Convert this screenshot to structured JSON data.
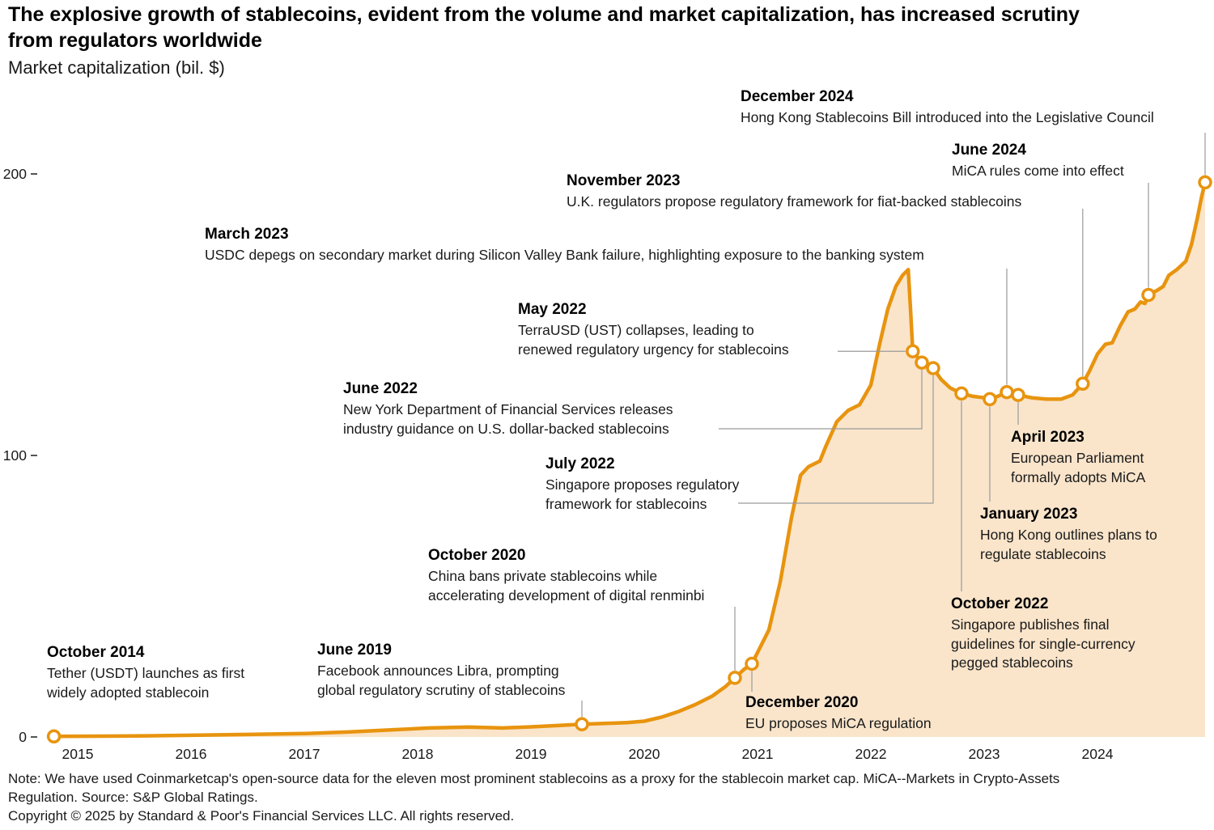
{
  "title": "The explosive growth of stablecoins, evident from the volume and market capitalization, has increased scrutiny\nfrom regulators worldwide",
  "subtitle": "Market capitalization (bil. $)",
  "footnote": "Note: We have used Coinmarketcap's open-source data for the eleven most prominent stablecoins as a proxy for the stablecoin market cap. MiCA--Markets in Crypto-Assets\nRegulation. Source: S&P Global Ratings.",
  "copyright": "Copyright © 2025 by Standard & Poor's Financial Services LLC. All rights reserved.",
  "colors": {
    "line": "#E8940F",
    "fill": "#FAE5CB",
    "marker_fill": "#FFFFFF",
    "leader": "#9A9A9A",
    "text": "#1A1A1A"
  },
  "chart_data": {
    "type": "area",
    "title": "Market capitalization (bil. $)",
    "ylabel": "Market capitalization (bil. $)",
    "xlabel": "",
    "x_range": [
      2014.75,
      2025.0
    ],
    "ylim": [
      0,
      200
    ],
    "grid": false,
    "y_ticks": [
      0,
      100,
      200
    ],
    "x_ticks": [
      2015,
      2016,
      2017,
      2018,
      2019,
      2020,
      2021,
      2022,
      2023,
      2024
    ],
    "series": [
      {
        "name": "Stablecoin market capitalization (bil. $)",
        "points": [
          [
            2014.79,
            0.2
          ],
          [
            2015.2,
            0.3
          ],
          [
            2015.6,
            0.4
          ],
          [
            2016.0,
            0.6
          ],
          [
            2016.5,
            0.9
          ],
          [
            2017.0,
            1.2
          ],
          [
            2017.4,
            1.8
          ],
          [
            2017.8,
            2.6
          ],
          [
            2018.1,
            3.2
          ],
          [
            2018.45,
            3.5
          ],
          [
            2018.75,
            3.2
          ],
          [
            2019.0,
            3.6
          ],
          [
            2019.25,
            4.1
          ],
          [
            2019.45,
            4.5
          ],
          [
            2019.65,
            4.8
          ],
          [
            2019.85,
            5.1
          ],
          [
            2020.0,
            5.6
          ],
          [
            2020.15,
            7
          ],
          [
            2020.3,
            9
          ],
          [
            2020.45,
            11.5
          ],
          [
            2020.6,
            14.5
          ],
          [
            2020.72,
            18
          ],
          [
            2020.8,
            21
          ],
          [
            2020.88,
            24
          ],
          [
            2020.95,
            26
          ],
          [
            2021.0,
            30
          ],
          [
            2021.1,
            38
          ],
          [
            2021.2,
            55
          ],
          [
            2021.3,
            78
          ],
          [
            2021.38,
            93
          ],
          [
            2021.45,
            96
          ],
          [
            2021.55,
            98
          ],
          [
            2021.6,
            103
          ],
          [
            2021.7,
            112
          ],
          [
            2021.8,
            116
          ],
          [
            2021.9,
            118
          ],
          [
            2022.0,
            125
          ],
          [
            2022.08,
            140
          ],
          [
            2022.15,
            152
          ],
          [
            2022.22,
            160
          ],
          [
            2022.28,
            164
          ],
          [
            2022.33,
            166
          ],
          [
            2022.35,
            152
          ],
          [
            2022.37,
            137
          ],
          [
            2022.42,
            134.5
          ],
          [
            2022.45,
            133
          ],
          [
            2022.5,
            131.5
          ],
          [
            2022.55,
            131
          ],
          [
            2022.62,
            127
          ],
          [
            2022.7,
            124
          ],
          [
            2022.8,
            122
          ],
          [
            2022.9,
            121
          ],
          [
            2023.0,
            120.5
          ],
          [
            2023.05,
            120
          ],
          [
            2023.12,
            121
          ],
          [
            2023.2,
            122.5
          ],
          [
            2023.25,
            122
          ],
          [
            2023.3,
            121.5
          ],
          [
            2023.42,
            120.5
          ],
          [
            2023.55,
            120
          ],
          [
            2023.68,
            120
          ],
          [
            2023.78,
            121.5
          ],
          [
            2023.87,
            125.5
          ],
          [
            2023.93,
            130
          ],
          [
            2024.0,
            136
          ],
          [
            2024.07,
            139.5
          ],
          [
            2024.13,
            140
          ],
          [
            2024.2,
            146
          ],
          [
            2024.27,
            151
          ],
          [
            2024.33,
            152
          ],
          [
            2024.38,
            154.5
          ],
          [
            2024.42,
            154
          ],
          [
            2024.45,
            157
          ],
          [
            2024.52,
            158.5
          ],
          [
            2024.58,
            160
          ],
          [
            2024.63,
            164
          ],
          [
            2024.7,
            166
          ],
          [
            2024.78,
            169
          ],
          [
            2024.83,
            175
          ],
          [
            2024.88,
            184
          ],
          [
            2024.92,
            192
          ],
          [
            2024.95,
            197
          ]
        ]
      }
    ],
    "events": [
      {
        "id": "oct-2014",
        "title": "October 2014",
        "text": "Tether (USDT) launches as first\nwidely adopted stablecoin",
        "year": 2014.79,
        "value": 0.2
      },
      {
        "id": "jun-2019",
        "title": "June 2019",
        "text": "Facebook announces Libra, prompting\nglobal regulatory scrutiny of stablecoins",
        "year": 2019.45,
        "value": 4.5
      },
      {
        "id": "oct-2020",
        "title": "October 2020",
        "text": "China bans private stablecoins while\naccelerating development of digital renminbi",
        "year": 2020.8,
        "value": 21
      },
      {
        "id": "dec-2020",
        "title": "December 2020",
        "text": "EU proposes MiCA regulation",
        "year": 2020.95,
        "value": 26
      },
      {
        "id": "may-2022",
        "title": "May 2022",
        "text": "TerraUSD (UST) collapses, leading to\nrenewed regulatory urgency for stablecoins",
        "year": 2022.37,
        "value": 137
      },
      {
        "id": "jun-2022",
        "title": "June 2022",
        "text": "New York Department of Financial Services releases\nindustry guidance on U.S. dollar-backed stablecoins",
        "year": 2022.45,
        "value": 133
      },
      {
        "id": "jul-2022",
        "title": "July 2022",
        "text": "Singapore proposes regulatory\nframework for stablecoins",
        "year": 2022.55,
        "value": 131
      },
      {
        "id": "oct-2022",
        "title": "October 2022",
        "text": "Singapore publishes final\nguidelines for single-currency\npegged stablecoins",
        "year": 2022.8,
        "value": 122
      },
      {
        "id": "jan-2023",
        "title": "January 2023",
        "text": "Hong Kong outlines plans to\nregulate stablecoins",
        "year": 2023.05,
        "value": 120
      },
      {
        "id": "mar-2023",
        "title": "March 2023",
        "text": "USDC depegs on secondary market during Silicon Valley Bank failure, highlighting exposure to the banking system",
        "year": 2023.2,
        "value": 122.5
      },
      {
        "id": "apr-2023",
        "title": "April 2023",
        "text": "European Parliament\nformally adopts MiCA",
        "year": 2023.3,
        "value": 121.5
      },
      {
        "id": "nov-2023",
        "title": "November 2023",
        "text": "U.K. regulators propose regulatory framework for fiat-backed stablecoins",
        "year": 2023.87,
        "value": 125.5
      },
      {
        "id": "jun-2024",
        "title": "June 2024",
        "text": "MiCA rules come into effect",
        "year": 2024.45,
        "value": 157
      },
      {
        "id": "dec-2024",
        "title": "December 2024",
        "text": "Hong Kong Stablecoins Bill introduced into the Legislative Council",
        "year": 2024.95,
        "value": 197
      }
    ]
  }
}
